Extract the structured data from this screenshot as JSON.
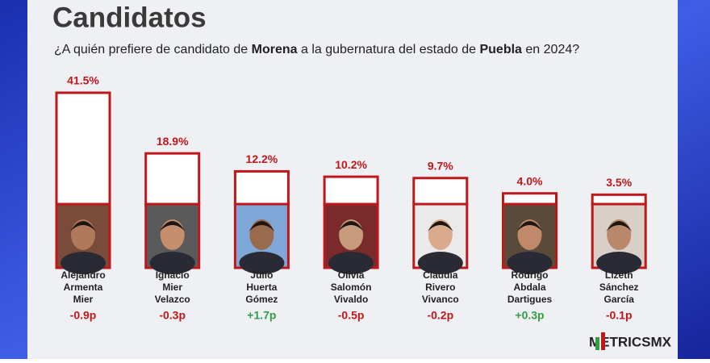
{
  "chart_data": {
    "type": "bar",
    "title": "Candidatos",
    "subtitle": [
      "¿A quién prefiere de candidato de ",
      "Morena",
      " a la gubernatura del estado de ",
      "Puebla",
      " en 2024?"
    ],
    "categories": [
      [
        "Alejandro",
        "Armenta",
        "Mier"
      ],
      [
        "Ignacio",
        "Mier",
        "Velazco"
      ],
      [
        "Julio",
        "Huerta",
        "Gómez"
      ],
      [
        "Olivia",
        "Salomón",
        "Vivaldo"
      ],
      [
        "Claudia",
        "Rivero",
        "Vivanco"
      ],
      [
        "Rodrigo",
        "Abdala",
        "Dartigues"
      ],
      [
        "Lizeth",
        "Sánchez",
        "García"
      ]
    ],
    "values": [
      41.5,
      18.9,
      12.2,
      10.2,
      9.7,
      4.0,
      3.5
    ],
    "value_labels": [
      "41.5%",
      "18.9%",
      "12.2%",
      "10.2%",
      "9.7%",
      "4.0%",
      "3.5%"
    ],
    "changes": [
      -0.9,
      -0.3,
      1.7,
      -0.5,
      -0.2,
      0.3,
      -0.1
    ],
    "change_labels": [
      "-0.9p",
      "-0.3p",
      "+1.7p",
      "-0.5p",
      "-0.2p",
      "+0.3p",
      "-0.1p"
    ],
    "color": "#c0171b",
    "positive_color": "#2e9e44",
    "negative_color": "#c0171b",
    "logo": "METRICSMX"
  }
}
